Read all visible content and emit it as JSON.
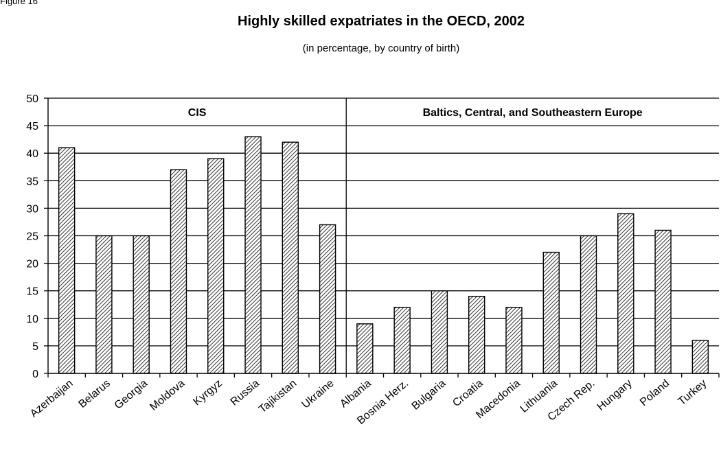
{
  "corner_label": "Figure 16",
  "chart_data": {
    "type": "bar",
    "title": "Highly skilled expatriates in the OECD, 2002",
    "subtitle": "(in percentage, by country of birth)",
    "xlabel": "",
    "ylabel": "",
    "ylim": [
      0,
      50
    ],
    "yticks": [
      0,
      5,
      10,
      15,
      20,
      25,
      30,
      35,
      40,
      45,
      50
    ],
    "grid": true,
    "categories": [
      "Azerbaijan",
      "Belarus",
      "Georgia",
      "Moldova",
      "Kyrgyz",
      "Russia",
      "Tajikistan",
      "Ukraine",
      "Albania",
      "Bosnia Herz.",
      "Bulgaria",
      "Croatia",
      "Macedonia",
      "Lithuania",
      "Czech Rep.",
      "Hungary",
      "Poland",
      "Turkey"
    ],
    "values": [
      41,
      25,
      25,
      37,
      39,
      43,
      42,
      27,
      9,
      12,
      15,
      14,
      12,
      22,
      25,
      29,
      26,
      6
    ],
    "bar_fill": "diagonal-hatch",
    "groups": [
      {
        "label": "CIS",
        "start": 0,
        "end": 7
      },
      {
        "label": "Baltics, Central, and Southeastern Europe",
        "start": 8,
        "end": 17
      }
    ]
  }
}
